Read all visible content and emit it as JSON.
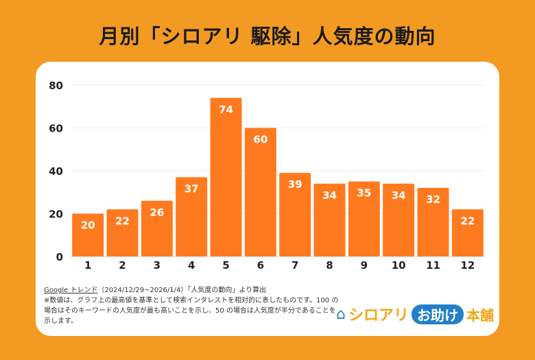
{
  "title": "月別「シロアリ 駆除」人気度の動向",
  "notes": {
    "source_link": "Google トレンド",
    "source_rest": "（2024/12/29~2026/1/4）「人気度の動向」より算出",
    "body": "※数値は、グラフ上の最高値を基準として検索インタレストを相対的に表したものです。100 の場合はそのキーワードの人気度が最も高いことを示し、50 の場合は人気度が半分であることを示します。"
  },
  "logo": {
    "part1": "シロアリ",
    "part2": "お助け",
    "part3": "本舗"
  },
  "colors": {
    "background": "#F29A22",
    "bar": "#FF7A1F",
    "logo_blue": "#2380c8",
    "logo_orange": "#F2A516"
  },
  "chart_data": {
    "type": "bar",
    "categories": [
      "1",
      "2",
      "3",
      "4",
      "5",
      "6",
      "7",
      "8",
      "9",
      "10",
      "11",
      "12"
    ],
    "values": [
      20,
      22,
      26,
      37,
      74,
      60,
      39,
      34,
      35,
      34,
      32,
      22
    ],
    "ylim": [
      0,
      80
    ],
    "yticks": [
      0,
      20,
      40,
      60,
      80
    ],
    "grid": true,
    "data_labels": true
  }
}
